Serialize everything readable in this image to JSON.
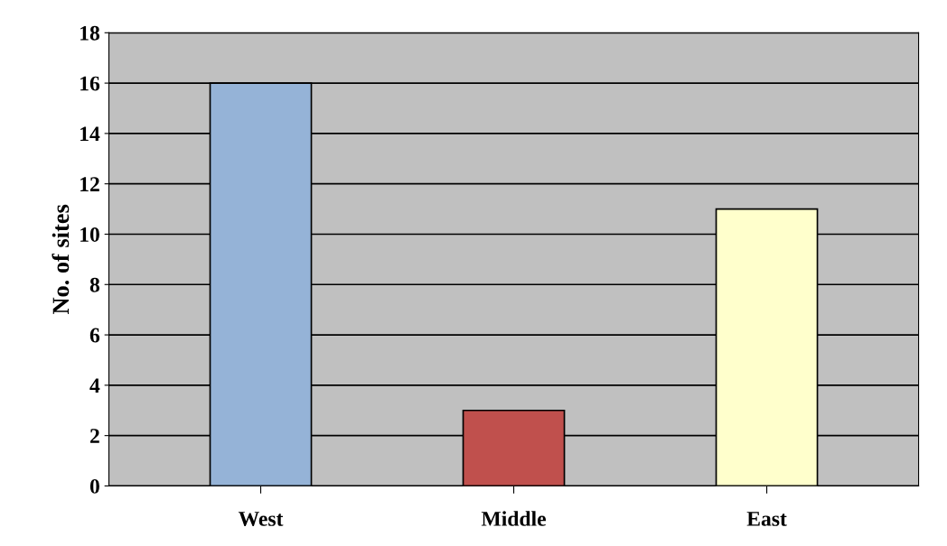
{
  "chart_data": {
    "type": "bar",
    "ylabel": "No. of sites",
    "categories": [
      "West",
      "Middle",
      "East"
    ],
    "values": [
      16,
      3,
      11
    ],
    "colors": [
      "#95b3d7",
      "#c0504d",
      "#ffffcc"
    ],
    "ylim": [
      0,
      18
    ],
    "yticks": [
      0,
      2,
      4,
      6,
      8,
      10,
      12,
      14,
      16,
      18
    ],
    "grid": "y",
    "legend": false
  }
}
